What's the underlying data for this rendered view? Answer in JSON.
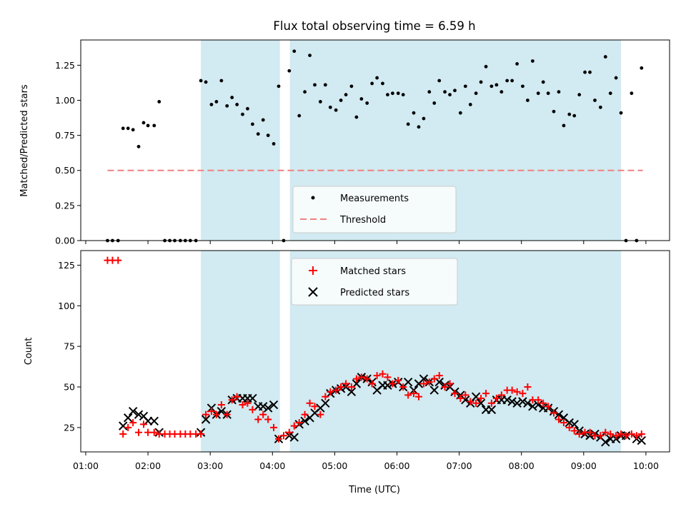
{
  "title": "Flux total observing time = 6.59 h",
  "xlabel": "Time (UTC)",
  "x_ticks": [
    {
      "value": 1.0,
      "label": "01:00"
    },
    {
      "value": 2.0,
      "label": "02:00"
    },
    {
      "value": 3.0,
      "label": "03:00"
    },
    {
      "value": 4.0,
      "label": "04:00"
    },
    {
      "value": 5.0,
      "label": "05:00"
    },
    {
      "value": 6.0,
      "label": "06:00"
    },
    {
      "value": 7.0,
      "label": "07:00"
    },
    {
      "value": 8.0,
      "label": "08:00"
    },
    {
      "value": 9.0,
      "label": "09:00"
    },
    {
      "value": 10.0,
      "label": "10:00"
    }
  ],
  "colors": {
    "shade": "#add8e6",
    "threshold": "#f08080",
    "matched": "#ff0000",
    "predicted": "#000000",
    "measurement": "#000000"
  },
  "chart_data": [
    {
      "type": "scatter",
      "panel": "top",
      "title": "Flux total observing time = 6.59 h",
      "xlabel": "",
      "ylabel": "Matched/Predicted stars",
      "xlim": [
        0.92,
        10.38
      ],
      "ylim": [
        0,
        1.43
      ],
      "yticks": [
        {
          "value": 0.0,
          "label": "0.00"
        },
        {
          "value": 0.25,
          "label": "0.25"
        },
        {
          "value": 0.5,
          "label": "0.50"
        },
        {
          "value": 0.75,
          "label": "0.75"
        },
        {
          "value": 1.0,
          "label": "1.00"
        },
        {
          "value": 1.25,
          "label": "1.25"
        }
      ],
      "shaded_intervals": [
        [
          2.85,
          4.12
        ],
        [
          4.28,
          9.6
        ]
      ],
      "threshold": {
        "name": "Threshold",
        "y": 0.5,
        "x_range": [
          1.35,
          9.95
        ]
      },
      "legend": {
        "location": "lower-center",
        "entries": [
          "Measurements",
          "Threshold"
        ]
      },
      "series": [
        {
          "name": "Measurements",
          "marker": "dot",
          "x": [
            1.35,
            1.43,
            1.52,
            1.6,
            1.68,
            1.76,
            1.85,
            1.93,
            2.0,
            2.1,
            2.18,
            2.27,
            2.35,
            2.43,
            2.52,
            2.6,
            2.68,
            2.77,
            2.85,
            2.93,
            3.02,
            3.1,
            3.18,
            3.27,
            3.35,
            3.43,
            3.52,
            3.6,
            3.68,
            3.77,
            3.85,
            3.93,
            4.02,
            4.1,
            4.18,
            4.27,
            4.35,
            4.43,
            4.52,
            4.6,
            4.68,
            4.77,
            4.85,
            4.93,
            5.02,
            5.1,
            5.18,
            5.27,
            5.35,
            5.43,
            5.52,
            5.6,
            5.68,
            5.77,
            5.85,
            5.93,
            6.02,
            6.1,
            6.18,
            6.27,
            6.35,
            6.43,
            6.52,
            6.6,
            6.68,
            6.77,
            6.85,
            6.93,
            7.02,
            7.1,
            7.18,
            7.27,
            7.35,
            7.43,
            7.52,
            7.6,
            7.68,
            7.77,
            7.85,
            7.93,
            8.02,
            8.1,
            8.18,
            8.27,
            8.35,
            8.43,
            8.52,
            8.6,
            8.68,
            8.77,
            8.85,
            8.93,
            9.02,
            9.1,
            9.18,
            9.27,
            9.35,
            9.43,
            9.52,
            9.6,
            9.68,
            9.77,
            9.85,
            9.93
          ],
          "y": [
            0,
            0,
            0,
            0.8,
            0.8,
            0.79,
            0.67,
            0.84,
            0.82,
            0.82,
            0.99,
            0,
            0,
            0,
            0,
            0,
            0,
            0,
            1.14,
            1.13,
            0.97,
            0.99,
            1.14,
            0.96,
            1.02,
            0.97,
            0.9,
            0.94,
            0.83,
            0.76,
            0.86,
            0.75,
            0.69,
            1.1,
            0,
            1.21,
            1.35,
            0.89,
            1.06,
            1.32,
            1.11,
            0.99,
            1.11,
            0.95,
            0.93,
            1.0,
            1.04,
            1.1,
            0.88,
            1.01,
            0.98,
            1.12,
            1.16,
            1.12,
            1.04,
            1.05,
            1.05,
            1.04,
            0.83,
            0.91,
            0.81,
            0.87,
            1.06,
            0.98,
            1.14,
            1.06,
            1.04,
            1.07,
            0.91,
            1.1,
            0.97,
            1.05,
            1.13,
            1.24,
            1.1,
            1.11,
            1.06,
            1.14,
            1.14,
            1.26,
            1.1,
            1.0,
            1.28,
            1.05,
            1.13,
            1.05,
            0.92,
            1.06,
            0.82,
            0.9,
            0.89,
            1.04,
            1.2,
            1.2,
            1.0,
            0.95,
            1.31,
            1.05,
            1.16,
            0.91,
            0,
            1.05,
            0,
            1.23
          ]
        }
      ]
    },
    {
      "type": "scatter",
      "panel": "bottom",
      "title": "",
      "xlabel": "Time (UTC)",
      "ylabel": "Count",
      "xlim": [
        0.92,
        10.38
      ],
      "ylim": [
        10,
        134
      ],
      "yticks": [
        {
          "value": 25,
          "label": "25"
        },
        {
          "value": 50,
          "label": "50"
        },
        {
          "value": 75,
          "label": "75"
        },
        {
          "value": 100,
          "label": "100"
        },
        {
          "value": 125,
          "label": "125"
        }
      ],
      "shaded_intervals": [
        [
          2.85,
          4.12
        ],
        [
          4.28,
          9.6
        ]
      ],
      "legend": {
        "location": "top-center",
        "entries": [
          "Matched stars",
          "Predicted stars"
        ]
      },
      "x": [
        1.35,
        1.43,
        1.52,
        1.6,
        1.68,
        1.76,
        1.85,
        1.93,
        2.0,
        2.1,
        2.18,
        2.27,
        2.35,
        2.43,
        2.52,
        2.6,
        2.68,
        2.77,
        2.85,
        2.93,
        3.02,
        3.1,
        3.18,
        3.27,
        3.35,
        3.43,
        3.52,
        3.6,
        3.68,
        3.77,
        3.85,
        3.93,
        4.02,
        4.1,
        4.18,
        4.27,
        4.35,
        4.43,
        4.52,
        4.6,
        4.68,
        4.77,
        4.85,
        4.93,
        5.02,
        5.1,
        5.18,
        5.27,
        5.35,
        5.43,
        5.52,
        5.6,
        5.68,
        5.77,
        5.85,
        5.93,
        6.02,
        6.1,
        6.18,
        6.27,
        6.35,
        6.43,
        6.52,
        6.6,
        6.68,
        6.77,
        6.85,
        6.93,
        7.02,
        7.1,
        7.18,
        7.27,
        7.35,
        7.43,
        7.52,
        7.6,
        7.68,
        7.77,
        7.85,
        7.93,
        8.02,
        8.1,
        8.18,
        8.27,
        8.35,
        8.43,
        8.52,
        8.6,
        8.68,
        8.77,
        8.85,
        8.93,
        9.02,
        9.1,
        9.18,
        9.27,
        9.35,
        9.43,
        9.52,
        9.6,
        9.68,
        9.77,
        9.85,
        9.93
      ],
      "series": [
        {
          "name": "Matched stars",
          "marker": "plus",
          "values": [
            128,
            128,
            128,
            21,
            25,
            28,
            22,
            27,
            22,
            22,
            21,
            21,
            21,
            21,
            21,
            21,
            21,
            21,
            21,
            33,
            35,
            33,
            39,
            33,
            42,
            44,
            39,
            40,
            36,
            30,
            33,
            30,
            25,
            18,
            20,
            22,
            26,
            28,
            33,
            40,
            38,
            33,
            44,
            47,
            48,
            50,
            52,
            50,
            55,
            56,
            55,
            52,
            57,
            58,
            56,
            52,
            54,
            50,
            45,
            46,
            44,
            52,
            53,
            55,
            57,
            50,
            52,
            46,
            43,
            45,
            41,
            40,
            43,
            46,
            40,
            43,
            45,
            48,
            48,
            47,
            46,
            50,
            42,
            42,
            40,
            38,
            34,
            30,
            28,
            25,
            23,
            21,
            22,
            22,
            20,
            20,
            22,
            21,
            20,
            21,
            20,
            21,
            20,
            21
          ],
          "predicted": [
            0,
            0,
            0,
            26,
            31,
            35,
            33,
            32,
            29,
            29,
            22,
            0,
            0,
            0,
            0,
            0,
            0,
            0,
            22,
            30,
            37,
            33,
            35,
            33,
            42,
            43,
            43,
            43,
            43,
            38,
            38,
            37,
            39,
            18,
            0,
            20,
            19,
            27,
            29,
            31,
            34,
            37,
            40,
            46,
            48,
            49,
            50,
            47,
            52,
            56,
            55,
            53,
            48,
            51,
            51,
            52,
            53,
            50,
            53,
            48,
            52,
            55,
            53,
            48,
            53,
            51,
            50,
            47,
            45,
            42,
            40,
            44,
            40,
            36,
            36,
            42,
            42,
            42,
            41,
            40,
            41,
            40,
            38,
            39,
            37,
            37,
            35,
            33,
            31,
            28,
            27,
            23,
            21,
            20,
            21,
            19,
            16,
            18,
            18,
            20,
            20,
            0,
            18,
            17
          ]
        },
        {
          "name": "Predicted stars",
          "marker": "x",
          "values": "see series[0].predicted"
        }
      ]
    }
  ]
}
